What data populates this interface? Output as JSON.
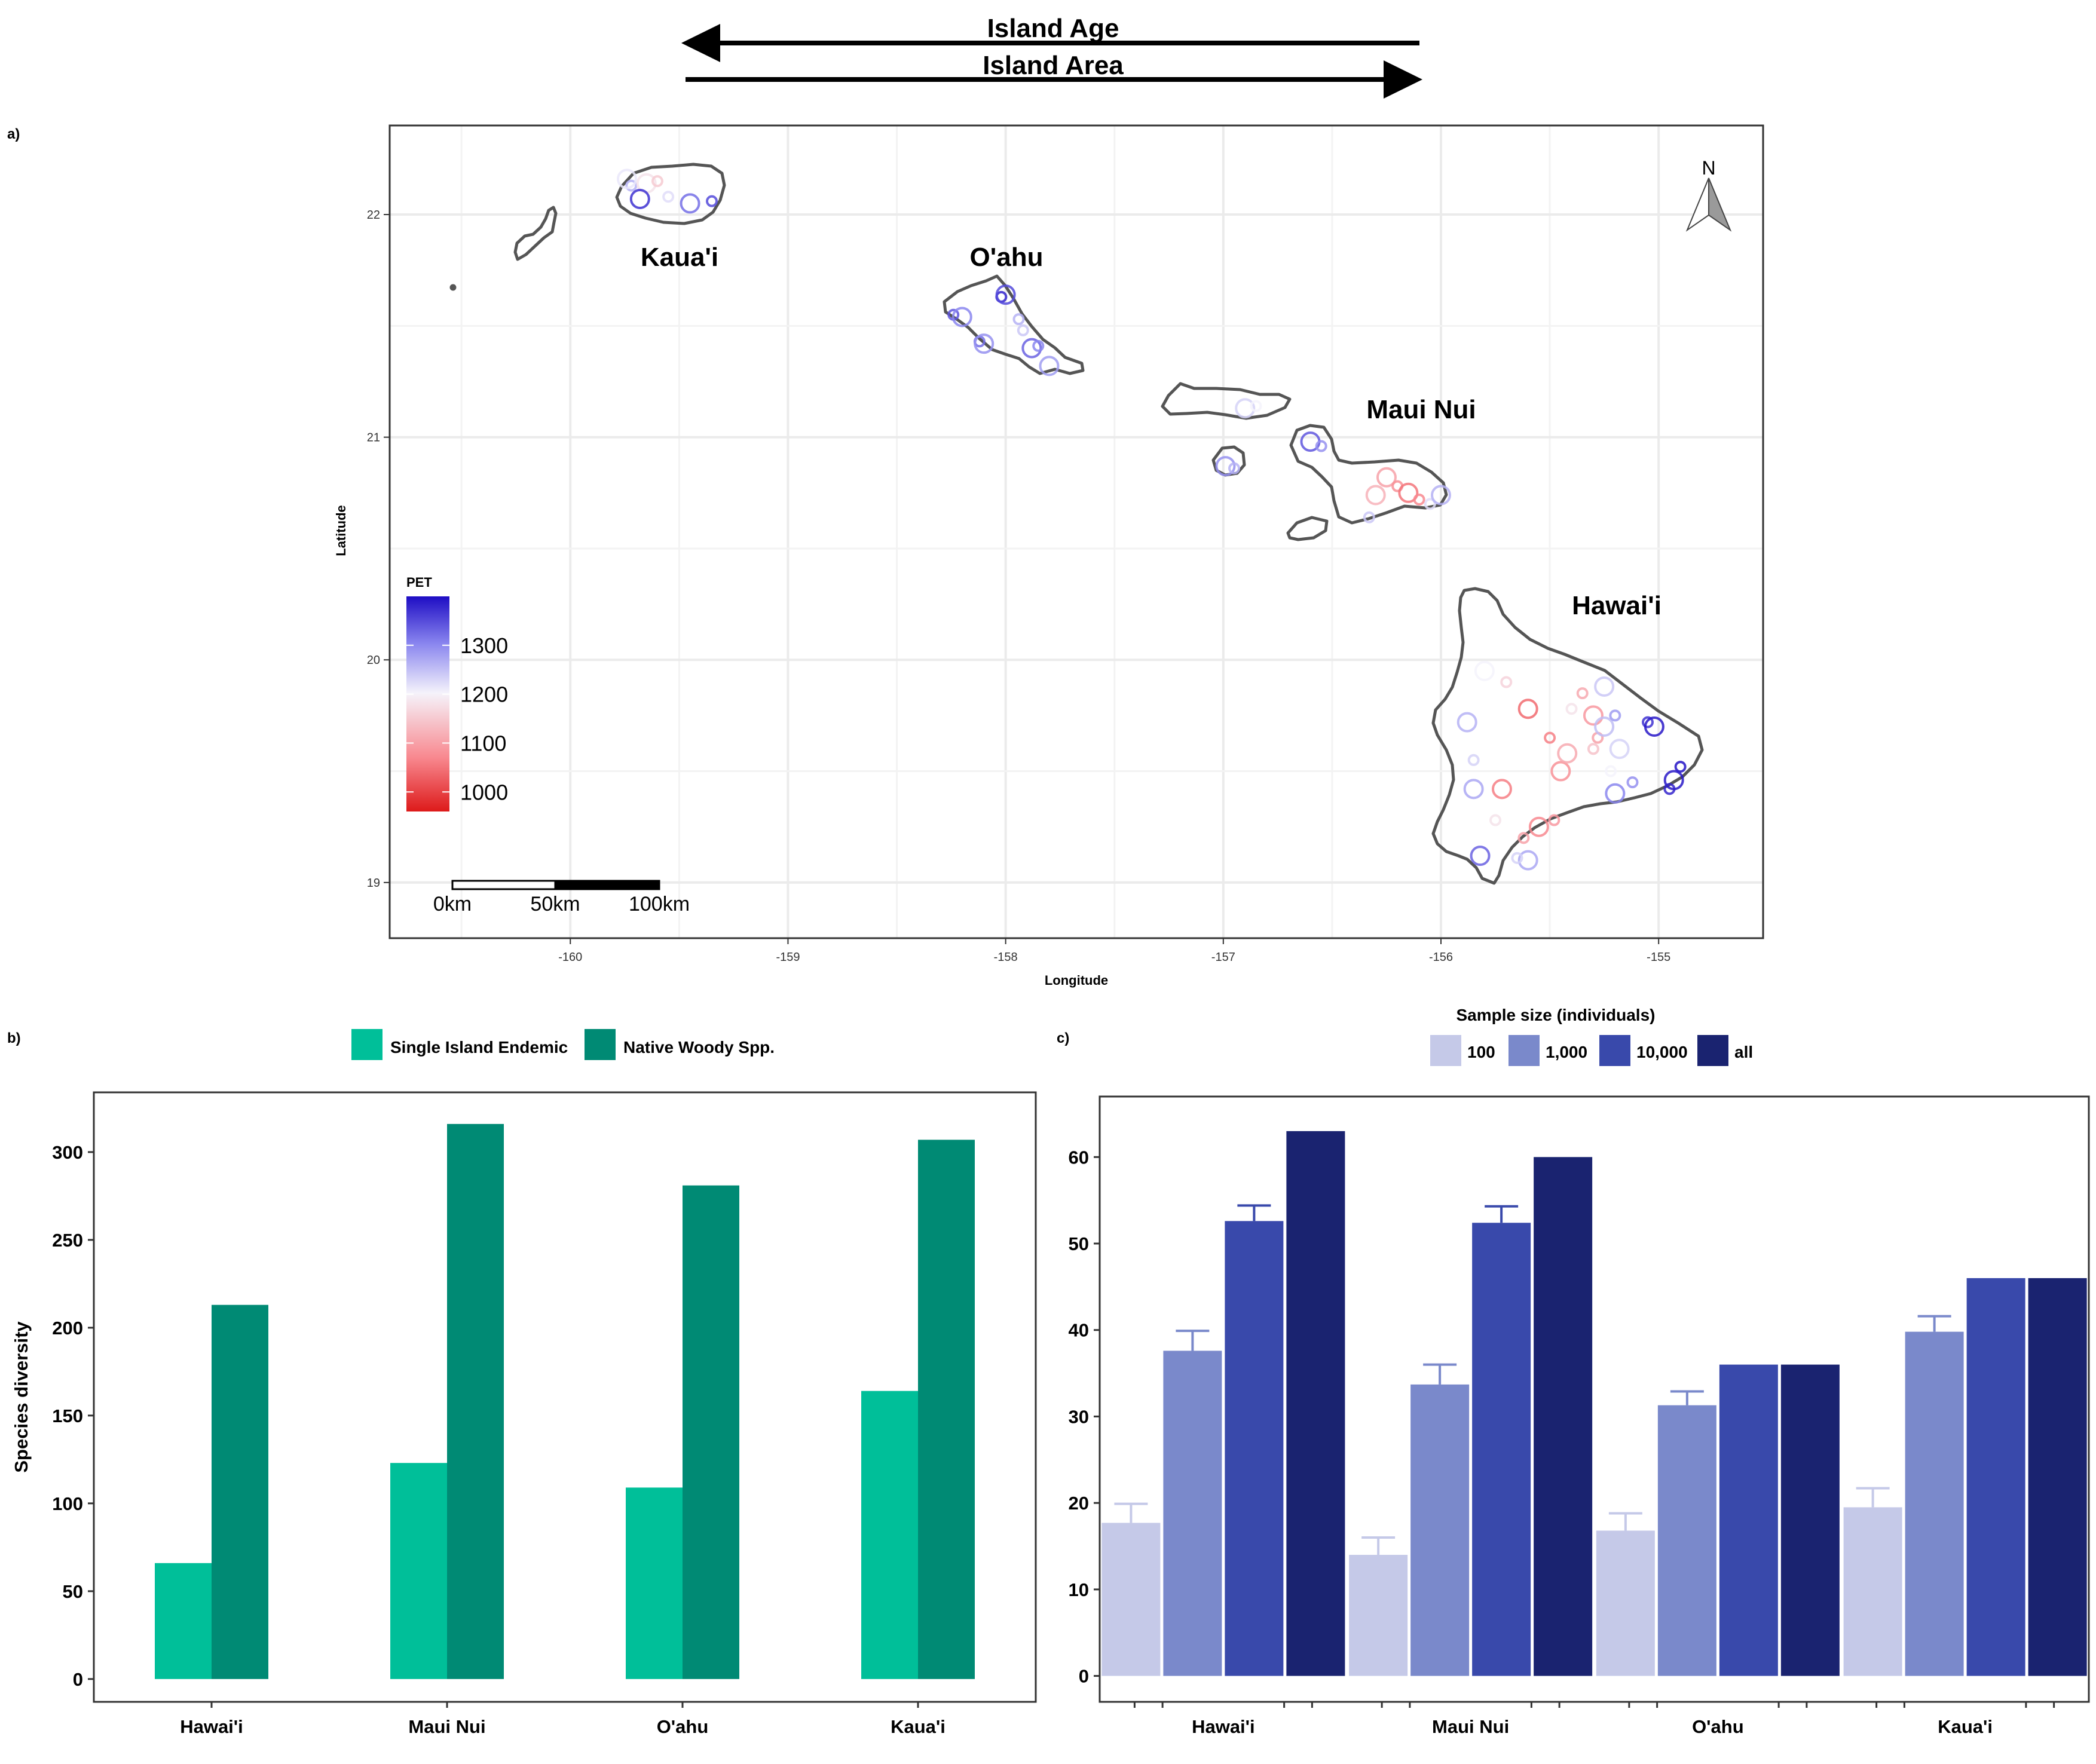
{
  "banner": {
    "age_label": "Island Age",
    "area_label": "Island Area"
  },
  "panels": {
    "a": "a)",
    "b": "b)",
    "c": "c)"
  },
  "map": {
    "xlabel": "Longitude",
    "ylabel": "Latitude",
    "xticks": [
      "-160",
      "-159",
      "-158",
      "-157",
      "-156",
      "-155"
    ],
    "yticks": [
      "22",
      "21",
      "20",
      "19"
    ],
    "xlim": [
      -160.83,
      -154.52
    ],
    "ylim": [
      18.75,
      22.4
    ],
    "islands": [
      {
        "name": "Kaua'i",
        "lon": -159.5,
        "lat": 21.78
      },
      {
        "name": "O'ahu",
        "lon": -158.0,
        "lat": 21.78
      },
      {
        "name": "Maui Nui",
        "lon": -156.1,
        "lat": 21.1
      },
      {
        "name": "Hawai'i",
        "lon": -155.2,
        "lat": 20.2
      }
    ],
    "legend": {
      "title": "PET",
      "ticks": [
        "1300",
        "1200",
        "1100",
        "1000"
      ],
      "tick_values": [
        1300,
        1200,
        1100,
        1000
      ],
      "range": [
        960,
        1400
      ],
      "colors": [
        "#dd1a1a",
        "#f8888f",
        "#f5f3fb",
        "#8a86ef",
        "#1e0dc4"
      ]
    },
    "scalebar": {
      "labels": [
        "0km",
        "50km",
        "100km"
      ]
    },
    "north_label": "N",
    "points": [
      {
        "lon": -159.72,
        "lat": 22.13,
        "pet": 1260
      },
      {
        "lon": -159.65,
        "lat": 22.14,
        "pet": 1180
      },
      {
        "lon": -159.6,
        "lat": 22.15,
        "pet": 1150
      },
      {
        "lon": -159.68,
        "lat": 22.07,
        "pet": 1370
      },
      {
        "lon": -159.55,
        "lat": 22.08,
        "pet": 1220
      },
      {
        "lon": -159.45,
        "lat": 22.05,
        "pet": 1320
      },
      {
        "lon": -159.35,
        "lat": 22.06,
        "pet": 1350
      },
      {
        "lon": -159.74,
        "lat": 22.16,
        "pet": 1210
      },
      {
        "lon": -158.24,
        "lat": 21.55,
        "pet": 1340
      },
      {
        "lon": -158.2,
        "lat": 21.54,
        "pet": 1300
      },
      {
        "lon": -158.02,
        "lat": 21.63,
        "pet": 1380
      },
      {
        "lon": -158.0,
        "lat": 21.64,
        "pet": 1350
      },
      {
        "lon": -158.12,
        "lat": 21.43,
        "pet": 1320
      },
      {
        "lon": -158.1,
        "lat": 21.42,
        "pet": 1290
      },
      {
        "lon": -157.94,
        "lat": 21.53,
        "pet": 1260
      },
      {
        "lon": -157.88,
        "lat": 21.4,
        "pet": 1330
      },
      {
        "lon": -157.85,
        "lat": 21.41,
        "pet": 1300
      },
      {
        "lon": -157.8,
        "lat": 21.32,
        "pet": 1280
      },
      {
        "lon": -157.92,
        "lat": 21.48,
        "pet": 1240
      },
      {
        "lon": -156.9,
        "lat": 21.13,
        "pet": 1230
      },
      {
        "lon": -156.85,
        "lat": 21.14,
        "pet": 1200
      },
      {
        "lon": -156.99,
        "lat": 20.87,
        "pet": 1290
      },
      {
        "lon": -156.95,
        "lat": 20.86,
        "pet": 1260
      },
      {
        "lon": -156.6,
        "lat": 20.98,
        "pet": 1340
      },
      {
        "lon": -156.55,
        "lat": 20.96,
        "pet": 1290
      },
      {
        "lon": -156.25,
        "lat": 20.82,
        "pet": 1100
      },
      {
        "lon": -156.2,
        "lat": 20.78,
        "pet": 1080
      },
      {
        "lon": -156.15,
        "lat": 20.75,
        "pet": 1050
      },
      {
        "lon": -156.1,
        "lat": 20.72,
        "pet": 1070
      },
      {
        "lon": -156.3,
        "lat": 20.74,
        "pet": 1120
      },
      {
        "lon": -156.05,
        "lat": 20.7,
        "pet": 1220
      },
      {
        "lon": -156.0,
        "lat": 20.74,
        "pet": 1260
      },
      {
        "lon": -156.33,
        "lat": 20.64,
        "pet": 1240
      },
      {
        "lon": -155.8,
        "lat": 19.95,
        "pet": 1200
      },
      {
        "lon": -155.7,
        "lat": 19.9,
        "pet": 1160
      },
      {
        "lon": -155.6,
        "lat": 19.78,
        "pet": 1040
      },
      {
        "lon": -155.5,
        "lat": 19.65,
        "pet": 1060
      },
      {
        "lon": -155.45,
        "lat": 19.5,
        "pet": 1080
      },
      {
        "lon": -155.35,
        "lat": 19.85,
        "pet": 1110
      },
      {
        "lon": -155.3,
        "lat": 19.75,
        "pet": 1090
      },
      {
        "lon": -155.28,
        "lat": 19.65,
        "pet": 1100
      },
      {
        "lon": -155.25,
        "lat": 19.7,
        "pet": 1250
      },
      {
        "lon": -155.2,
        "lat": 19.75,
        "pet": 1280
      },
      {
        "lon": -155.18,
        "lat": 19.6,
        "pet": 1230
      },
      {
        "lon": -155.22,
        "lat": 19.5,
        "pet": 1200
      },
      {
        "lon": -155.2,
        "lat": 19.4,
        "pet": 1300
      },
      {
        "lon": -155.12,
        "lat": 19.45,
        "pet": 1290
      },
      {
        "lon": -155.25,
        "lat": 19.88,
        "pet": 1240
      },
      {
        "lon": -155.05,
        "lat": 19.72,
        "pet": 1370
      },
      {
        "lon": -155.02,
        "lat": 19.7,
        "pet": 1390
      },
      {
        "lon": -154.9,
        "lat": 19.52,
        "pet": 1395
      },
      {
        "lon": -154.93,
        "lat": 19.46,
        "pet": 1390
      },
      {
        "lon": -154.95,
        "lat": 19.42,
        "pet": 1380
      },
      {
        "lon": -155.88,
        "lat": 19.72,
        "pet": 1260
      },
      {
        "lon": -155.85,
        "lat": 19.55,
        "pet": 1230
      },
      {
        "lon": -155.85,
        "lat": 19.42,
        "pet": 1270
      },
      {
        "lon": -155.62,
        "lat": 19.2,
        "pet": 1100
      },
      {
        "lon": -155.55,
        "lat": 19.25,
        "pet": 1070
      },
      {
        "lon": -155.48,
        "lat": 19.28,
        "pet": 1090
      },
      {
        "lon": -155.6,
        "lat": 19.1,
        "pet": 1270
      },
      {
        "lon": -155.65,
        "lat": 19.11,
        "pet": 1230
      },
      {
        "lon": -155.82,
        "lat": 19.12,
        "pet": 1330
      },
      {
        "lon": -155.75,
        "lat": 19.28,
        "pet": 1180
      },
      {
        "lon": -155.42,
        "lat": 19.58,
        "pet": 1110
      },
      {
        "lon": -155.3,
        "lat": 19.6,
        "pet": 1140
      },
      {
        "lon": -155.72,
        "lat": 19.42,
        "pet": 1060
      },
      {
        "lon": -155.4,
        "lat": 19.78,
        "pet": 1180
      }
    ]
  },
  "chart_data": [
    {
      "type": "bar",
      "title": "",
      "xlabel": "",
      "ylabel": "Species diversity",
      "categories": [
        "Hawai'i",
        "Maui Nui",
        "O'ahu",
        "Kaua'i"
      ],
      "ylim": [
        -13,
        334
      ],
      "yticks": [
        0,
        50,
        100,
        150,
        200,
        250,
        300
      ],
      "legend_position": "top",
      "series": [
        {
          "name": "Single Island Endemic",
          "color": "#00bf99",
          "values": [
            66,
            123,
            109,
            164
          ]
        },
        {
          "name": "Native Woody Spp.",
          "color": "#008a74",
          "values": [
            213,
            316,
            281,
            307
          ]
        }
      ]
    },
    {
      "type": "bar",
      "title": "",
      "xlabel": "",
      "ylabel": "",
      "legend_title": "Sample size (individuals)",
      "legend_position": "top",
      "categories": [
        "Hawai'i",
        "Maui Nui",
        "O'ahu",
        "Kaua'i"
      ],
      "ylim": [
        -3,
        67
      ],
      "yticks": [
        0,
        10,
        20,
        30,
        40,
        50,
        60
      ],
      "series": [
        {
          "name": "100",
          "color": "#c5c9e8",
          "values": [
            17.7,
            14.0,
            16.8,
            19.5
          ],
          "error": [
            2.2,
            2.0,
            2.0,
            2.2
          ]
        },
        {
          "name": "1,000",
          "color": "#7a89cb",
          "values": [
            37.6,
            33.7,
            31.3,
            39.8
          ],
          "error": [
            2.3,
            2.3,
            1.6,
            1.8
          ]
        },
        {
          "name": "10,000",
          "color": "#3949ab",
          "values": [
            52.6,
            52.4,
            36.0,
            46.0
          ],
          "error": [
            1.8,
            1.9,
            0,
            0
          ]
        },
        {
          "name": "all",
          "color": "#1a2370",
          "values": [
            63.0,
            60.0,
            36.0,
            46.0
          ],
          "error": [
            0,
            0,
            0,
            0
          ]
        }
      ]
    }
  ]
}
